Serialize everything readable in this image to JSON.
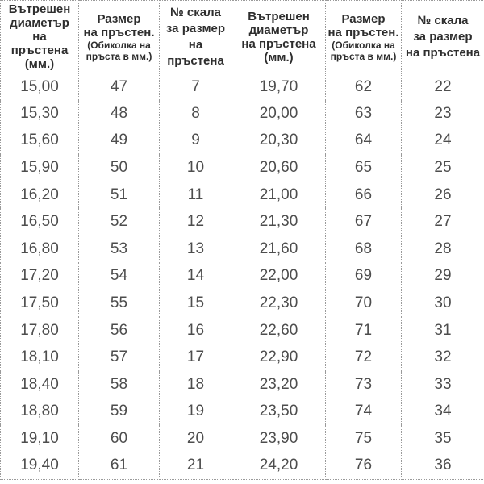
{
  "colors": {
    "background": "#ffffff",
    "border": "#9a9a9a",
    "header_text": "#2e2e2e",
    "data_text": "#4d4d4d"
  },
  "headers": {
    "left": {
      "diameter_lines": [
        "Вътрешен",
        "диаметър",
        "на",
        "пръстена",
        "(мм.)"
      ],
      "size_lines": [
        "Размер",
        "на пръстен."
      ],
      "size_sub_lines": [
        "(Обиколка на",
        "пръста в мм.)"
      ],
      "scale_lines": [
        "№ скала",
        "за размер",
        "на пръстена"
      ]
    },
    "right": {
      "diameter_lines": [
        "Вътрешен",
        "диаметър",
        "на пръстена",
        "(мм.)"
      ],
      "size_lines": [
        "Размер",
        "на пръстен."
      ],
      "size_sub_lines": [
        "(Обиколка на",
        "пръста в мм.)"
      ],
      "scale_lines": [
        "№ скала",
        "за размер",
        "на пръстена"
      ]
    }
  },
  "chart_data": {
    "type": "table",
    "columns": [
      "Вътрешен диаметър на пръстена (мм.)",
      "Размер на пръстен. (Обиколка на пръста в мм.)",
      "№ скала за размер на пръстена",
      "Вътрешен диаметър на пръстена (мм.)",
      "Размер на пръстен. (Обиколка на пръста в мм.)",
      "№ скала за размер на пръстена"
    ],
    "rows": [
      [
        "15,00",
        "47",
        "7",
        "19,70",
        "62",
        "22"
      ],
      [
        "15,30",
        "48",
        "8",
        "20,00",
        "63",
        "23"
      ],
      [
        "15,60",
        "49",
        "9",
        "20,30",
        "64",
        "24"
      ],
      [
        "15,90",
        "50",
        "10",
        "20,60",
        "65",
        "25"
      ],
      [
        "16,20",
        "51",
        "11",
        "21,00",
        "66",
        "26"
      ],
      [
        "16,50",
        "52",
        "12",
        "21,30",
        "67",
        "27"
      ],
      [
        "16,80",
        "53",
        "13",
        "21,60",
        "68",
        "28"
      ],
      [
        "17,20",
        "54",
        "14",
        "22,00",
        "69",
        "29"
      ],
      [
        "17,50",
        "55",
        "15",
        "22,30",
        "70",
        "30"
      ],
      [
        "17,80",
        "56",
        "16",
        "22,60",
        "71",
        "31"
      ],
      [
        "18,10",
        "57",
        "17",
        "22,90",
        "72",
        "32"
      ],
      [
        "18,40",
        "58",
        "18",
        "23,20",
        "73",
        "33"
      ],
      [
        "18,80",
        "59",
        "19",
        "23,50",
        "74",
        "34"
      ],
      [
        "19,10",
        "60",
        "20",
        "23,90",
        "75",
        "35"
      ],
      [
        "19,40",
        "61",
        "21",
        "24,20",
        "76",
        "36"
      ]
    ]
  }
}
